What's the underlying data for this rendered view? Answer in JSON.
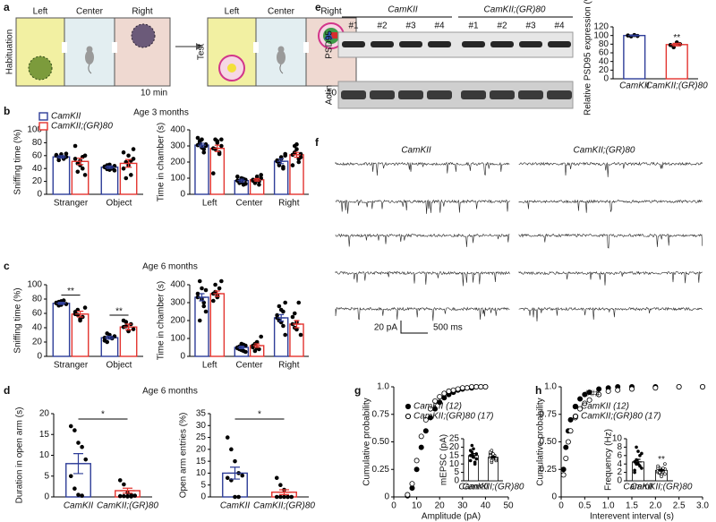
{
  "diagram": {
    "panel": "a",
    "habituation": {
      "side_label": "Habituation",
      "chambers": [
        "Left",
        "Center",
        "Right"
      ],
      "time": "10 min"
    },
    "test": {
      "side_label": "Test",
      "chambers": [
        "Left",
        "Center",
        "Right"
      ],
      "time": "10 min"
    }
  },
  "blot": {
    "panel": "e",
    "groups": [
      "CamKII",
      "CamKII;(GR)80"
    ],
    "lanes": [
      "#1",
      "#2",
      "#3",
      "#4",
      "#1",
      "#2",
      "#3",
      "#4"
    ],
    "row_labels": [
      "PSD95",
      "Actin"
    ]
  },
  "traces": {
    "panel": "f",
    "groups": [
      "CamKII",
      "CamKII;(GR)80"
    ],
    "scale_y": "20 pA",
    "scale_x": "500 ms"
  },
  "chart_data": [
    {
      "type": "bar",
      "panel": "b",
      "subtitle": "Age 3 months",
      "ylabel": "Sniffing time (%)",
      "categories": [
        "Stranger",
        "Object"
      ],
      "legend": "upper left",
      "series": [
        {
          "name": "CamKII",
          "color": "#2e3d98",
          "values": [
            58,
            42
          ],
          "errors": [
            2,
            2
          ],
          "points": [
            [
              60,
              57,
              62,
              55,
              58,
              61,
              53,
              59,
              56,
              63
            ],
            [
              42,
              45,
              38,
              40,
              44,
              43,
              39,
              46,
              41,
              37
            ]
          ]
        },
        {
          "name": "CamKII;(GR)80",
          "color": "#e3342f",
          "values": [
            51,
            48
          ],
          "errors": [
            5,
            6
          ],
          "points": [
            [
              75,
              48,
              52,
              40,
              60,
              55,
              35,
              45,
              58,
              30
            ],
            [
              65,
              50,
              45,
              30,
              55,
              40,
              25,
              60,
              52,
              70
            ]
          ]
        }
      ],
      "ylim": [
        0,
        100
      ],
      "yticks": [
        0,
        20,
        40,
        60,
        80,
        100
      ]
    },
    {
      "type": "bar",
      "ylabel": "Time in chamber (s)",
      "categories": [
        "Left",
        "Center",
        "Right"
      ],
      "series": [
        {
          "name": "CamKII",
          "color": "#2e3d98",
          "values": [
            305,
            85,
            205
          ],
          "errors": [
            12,
            9,
            15
          ],
          "points": [
            [
              305,
              330,
              340,
              280,
              300,
              350,
              320,
              290,
              260,
              310
            ],
            [
              85,
              70,
              100,
              60,
              90,
              110,
              80,
              75,
              95,
              65
            ],
            [
              205,
              180,
              230,
              160,
              250,
              210,
              190,
              220,
              170,
              240
            ]
          ]
        },
        {
          "name": "CamKII;(GR)80",
          "color": "#e3342f",
          "values": [
            285,
            90,
            245
          ],
          "errors": [
            20,
            8,
            15
          ],
          "points": [
            [
              285,
              340,
              330,
              250,
              300,
              130,
              280,
              320,
              260,
              340
            ],
            [
              90,
              70,
              110,
              60,
              100,
              85,
              75,
              95,
              80,
              120
            ],
            [
              245,
              300,
              280,
              200,
              230,
              180,
              260,
              310,
              220,
              250
            ]
          ]
        }
      ],
      "ylim": [
        0,
        400
      ],
      "yticks": [
        0,
        100,
        200,
        300,
        400
      ]
    },
    {
      "type": "bar",
      "panel": "c",
      "subtitle": "Age 6 months",
      "ylabel": "Sniffing time (%)",
      "categories": [
        "Stranger",
        "Object"
      ],
      "annotations": [
        "**",
        "**"
      ],
      "series": [
        {
          "name": "CamKII",
          "color": "#2e3d98",
          "values": [
            74,
            26
          ],
          "errors": [
            1.5,
            2
          ],
          "points": [
            [
              74,
              76,
              72,
              78,
              73,
              75,
              71,
              77
            ],
            [
              26,
              20,
              30,
              25,
              28,
              22,
              32,
              27
            ]
          ]
        },
        {
          "name": "CamKII;(GR)80",
          "color": "#e3342f",
          "values": [
            59,
            41
          ],
          "errors": [
            4,
            4
          ],
          "points": [
            [
              59,
              65,
              50,
              55,
              68,
              62,
              58,
              52
            ],
            [
              41,
              48,
              35,
              45,
              38,
              50,
              42,
              36
            ]
          ]
        }
      ],
      "ylim": [
        0,
        100
      ],
      "yticks": [
        0,
        20,
        40,
        60,
        80,
        100
      ]
    },
    {
      "type": "bar",
      "ylabel": "Time in chamber (s)",
      "categories": [
        "Left",
        "Center",
        "Right"
      ],
      "series": [
        {
          "name": "CamKII",
          "color": "#2e3d98",
          "values": [
            330,
            50,
            215
          ],
          "errors": [
            20,
            7,
            18
          ],
          "points": [
            [
              330,
              420,
              380,
              300,
              250,
              350,
              200,
              320,
              280,
              370
            ],
            [
              50,
              40,
              70,
              30,
              60,
              45,
              55,
              35,
              65,
              25
            ],
            [
              215,
              280,
              190,
              250,
              120,
              230,
              200,
              260,
              170,
              300
            ]
          ]
        },
        {
          "name": "CamKII;(GR)80",
          "color": "#e3342f",
          "values": [
            350,
            60,
            180
          ],
          "errors": [
            15,
            10,
            20
          ],
          "points": [
            [
              350,
              400,
              330,
              380,
              420,
              310,
              360,
              340
            ],
            [
              60,
              30,
              80,
              40,
              110,
              50,
              70,
              45
            ],
            [
              180,
              240,
              150,
              300,
              120,
              220,
              160,
              190
            ]
          ]
        }
      ],
      "ylim": [
        0,
        400
      ],
      "yticks": [
        0,
        100,
        200,
        300,
        400
      ]
    },
    {
      "type": "bar",
      "panel": "d",
      "subtitle": "Age 6 months",
      "ylabel": "Duration in open arm (s)",
      "categories": [
        "CamKII",
        "CamKII;(GR)80"
      ],
      "colors": [
        "#2e3d98",
        "#e3342f"
      ],
      "annotations": [
        "*"
      ],
      "values": [
        8,
        1.5
      ],
      "errors": [
        2.4,
        0.6
      ],
      "points": [
        [
          17,
          16,
          13,
          12,
          9,
          5,
          2,
          0.5,
          0.3
        ],
        [
          4,
          3,
          1,
          0.5,
          0.3,
          0.2,
          0.2,
          0.1,
          0.1
        ]
      ],
      "ylim": [
        0,
        20
      ],
      "yticks": [
        0,
        5,
        10,
        15,
        20
      ]
    },
    {
      "type": "bar",
      "ylabel": "Open arm entries (%)",
      "categories": [
        "CamKII",
        "CamKII;(GR)80"
      ],
      "colors": [
        "#2e3d98",
        "#e3342f"
      ],
      "annotations": [
        "*"
      ],
      "values": [
        10,
        2
      ],
      "errors": [
        2.5,
        1
      ],
      "points": [
        [
          25,
          20,
          15,
          10,
          9,
          8,
          7,
          0,
          0
        ],
        [
          8,
          5,
          3,
          0,
          0,
          0,
          0,
          0,
          0
        ]
      ],
      "ylim": [
        0,
        35
      ],
      "yticks": [
        0,
        5,
        10,
        15,
        20,
        25,
        30,
        35
      ]
    },
    {
      "type": "bar",
      "ylabel": "Relative PSD95 expression (%)",
      "categories": [
        "CamKII",
        "CamKII;(GR)80"
      ],
      "colors": [
        "#2e3d98",
        "#e3342f"
      ],
      "annotations": [
        "**"
      ],
      "values": [
        100,
        79
      ],
      "errors": [
        1,
        3
      ],
      "points": [
        [
          100,
          98,
          101,
          99
        ],
        [
          78,
          73,
          84,
          80
        ]
      ],
      "ylim": [
        0,
        120
      ],
      "yticks": [
        0,
        20,
        40,
        60,
        80,
        100,
        120
      ]
    },
    {
      "type": "line",
      "panel": "g",
      "xlabel": "Amplitude (pA)",
      "ylabel": "Cumulative probability",
      "legend": "upper left",
      "x": [
        6,
        8,
        10,
        12,
        14,
        16,
        18,
        20,
        22,
        24,
        26,
        28,
        30,
        32,
        34,
        36,
        38,
        40
      ],
      "series": [
        {
          "name": "CamKII (12)",
          "color": "#000000",
          "marker_fill": "#000000",
          "values": [
            0.01,
            0.08,
            0.25,
            0.45,
            0.6,
            0.72,
            0.8,
            0.86,
            0.9,
            0.93,
            0.95,
            0.97,
            0.98,
            0.99,
            0.99,
            1,
            1,
            1
          ]
        },
        {
          "name": "CamKII;(GR)80 (17)",
          "color": "#000000",
          "marker_fill": "#ffffff",
          "values": [
            0.02,
            0.12,
            0.33,
            0.55,
            0.7,
            0.8,
            0.87,
            0.91,
            0.94,
            0.96,
            0.97,
            0.98,
            0.99,
            0.99,
            1,
            1,
            1,
            1
          ]
        }
      ],
      "xlim": [
        0,
        50
      ],
      "xticks": [
        0,
        10,
        20,
        30,
        40,
        50
      ],
      "ylim": [
        0,
        1
      ],
      "yticks": [
        0,
        0.25,
        {
          "value": 0.5,
          "label": "0.50"
        },
        0.75,
        {
          "value": 1,
          "label": "1.0"
        }
      ]
    },
    {
      "type": "bar",
      "ylabel": "mEPSC (pA)",
      "categories": [
        "CamKII",
        "CamKII;(GR)80"
      ],
      "colors": [
        "#000000",
        "#000000"
      ],
      "point_fills": [
        "#000000",
        "#ffffff"
      ],
      "values": [
        15,
        14
      ],
      "errors": [
        1.2,
        0.5
      ],
      "points": [
        [
          15,
          21,
          19,
          11,
          16,
          12,
          17,
          14,
          10,
          13,
          18,
          15
        ],
        [
          14,
          17,
          13,
          15,
          12,
          16,
          11,
          14,
          15,
          13,
          17,
          12,
          16,
          14,
          13,
          15,
          18
        ]
      ],
      "ylim": [
        0,
        25
      ],
      "yticks": [
        0,
        5,
        10,
        15,
        20,
        25
      ]
    },
    {
      "type": "line",
      "panel": "h",
      "xlabel": "Interevent interval (s)",
      "ylabel": "Cumulative probability",
      "legend": "upper left",
      "annotations": [
        "###"
      ],
      "x": [
        0.05,
        0.1,
        0.15,
        0.2,
        0.3,
        0.4,
        0.5,
        0.6,
        0.8,
        1.0,
        1.2,
        1.5,
        2.0,
        2.5,
        3.0
      ],
      "series": [
        {
          "name": "CamKII (12)",
          "color": "#000000",
          "marker_fill": "#000000",
          "values": [
            0.25,
            0.45,
            0.6,
            0.7,
            0.82,
            0.89,
            0.93,
            0.95,
            0.98,
            0.99,
            1,
            1,
            1,
            1,
            1
          ]
        },
        {
          "name": "CamKII;(GR)80 (17)",
          "color": "#000000",
          "marker_fill": "#ffffff",
          "values": [
            0.2,
            0.35,
            0.5,
            0.6,
            0.72,
            0.8,
            0.85,
            0.88,
            0.93,
            0.96,
            0.97,
            0.98,
            0.99,
            1,
            1
          ]
        }
      ],
      "xlim": [
        0,
        3
      ],
      "xticks": [
        0,
        0.5,
        {
          "value": 1,
          "label": "1.0"
        },
        1.5,
        {
          "value": 2,
          "label": "2.0"
        },
        2.5,
        {
          "value": 3,
          "label": "3.0"
        }
      ],
      "ylim": [
        0,
        1
      ],
      "yticks": [
        0,
        0.25,
        {
          "value": 0.5,
          "label": "0.50"
        },
        0.75,
        {
          "value": 1,
          "label": "1.0"
        }
      ]
    },
    {
      "type": "bar",
      "ylabel": "Frequency (Hz)",
      "categories": [
        "CamKII",
        "CamKII;(GR)80"
      ],
      "colors": [
        "#000000",
        "#000000"
      ],
      "point_fills": [
        "#000000",
        "#ffffff"
      ],
      "annotations": [
        "**"
      ],
      "values": [
        4.5,
        2.5
      ],
      "errors": [
        0.6,
        0.2
      ],
      "points": [
        [
          4.5,
          8,
          7,
          6,
          3,
          2,
          5,
          4,
          3.5,
          6.5,
          2.5,
          4
        ],
        [
          2,
          3,
          1.5,
          2.5,
          4,
          3,
          2,
          1,
          2.2,
          2.8,
          3.5,
          1.8,
          2.6,
          3,
          1.6,
          2.4,
          2
        ]
      ],
      "ylim": [
        0,
        10
      ],
      "yticks": [
        0,
        2,
        4,
        6,
        8,
        10
      ]
    }
  ]
}
